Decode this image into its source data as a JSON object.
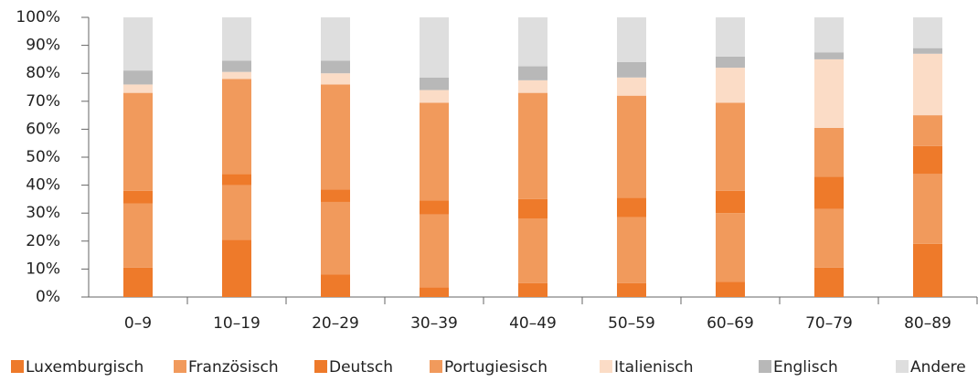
{
  "chart_data": {
    "type": "stacked-bar",
    "categories": [
      "0–9",
      "10–19",
      "20–29",
      "30–39",
      "40–49",
      "50–59",
      "60–69",
      "70–79",
      "80–89"
    ],
    "series": [
      {
        "name": "Luxemburgisch",
        "color": "#ee7a2a",
        "values": [
          10.5,
          20.5,
          8,
          3.5,
          5,
          5,
          5.5,
          10.5,
          19
        ]
      },
      {
        "name": "Französisch",
        "color": "#f19a5c",
        "values": [
          23,
          19.5,
          26,
          26,
          23,
          23.5,
          24.5,
          21,
          25
        ]
      },
      {
        "name": "Deutsch",
        "color": "#ee7a2a",
        "values": [
          4.5,
          4,
          4.5,
          5,
          7,
          7,
          8,
          11.5,
          10
        ]
      },
      {
        "name": "Portugiesisch",
        "color": "#f19a5c",
        "values": [
          35,
          34,
          37.5,
          35,
          38,
          36.5,
          31.5,
          17.5,
          11
        ]
      },
      {
        "name": "Italienisch",
        "color": "#fbdcc6",
        "values": [
          3,
          2.5,
          4,
          4.5,
          4.5,
          6.5,
          12.5,
          24.5,
          22
        ]
      },
      {
        "name": "Englisch",
        "color": "#b8b8b8",
        "values": [
          5,
          4,
          4.5,
          4.5,
          5,
          5.5,
          4,
          2.5,
          2
        ]
      },
      {
        "name": "Andere",
        "color": "#dedede",
        "values": [
          19,
          15.5,
          15.5,
          21.5,
          17.5,
          16,
          14,
          12.5,
          11
        ]
      }
    ],
    "ylim": [
      0,
      100
    ],
    "yticks": [
      {
        "value": 0,
        "label": "0%"
      },
      {
        "value": 10,
        "label": "10%"
      },
      {
        "value": 20,
        "label": "20%"
      },
      {
        "value": 30,
        "label": "30%"
      },
      {
        "value": 40,
        "label": "40%"
      },
      {
        "value": 50,
        "label": "50%"
      },
      {
        "value": 60,
        "label": "60%"
      },
      {
        "value": 70,
        "label": "70%"
      },
      {
        "value": 80,
        "label": "80%"
      },
      {
        "value": 90,
        "label": "90%"
      },
      {
        "value": 100,
        "label": "100%"
      }
    ]
  }
}
